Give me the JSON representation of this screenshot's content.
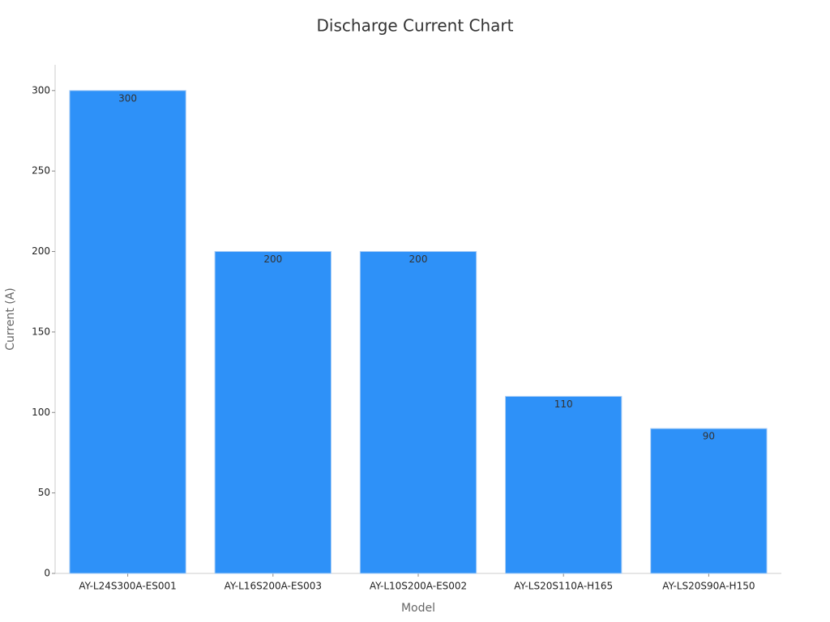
{
  "chart_data": {
    "type": "bar",
    "title": "Discharge Current Chart",
    "x_label": "Model",
    "y_label": "Current (A)",
    "categories": [
      "AY-L24S300A-ES001",
      "AY-L16S200A-ES003",
      "AY-L10S200A-ES002",
      "AY-LS20S110A-H165",
      "AY-LS20S90A-H150"
    ],
    "values": [
      300,
      200,
      200,
      110,
      90
    ],
    "color": "#2e91f8",
    "ylim": [
      0,
      315
    ],
    "yticks": [
      0,
      50,
      100,
      150,
      200,
      250,
      300
    ],
    "grid": false
  }
}
